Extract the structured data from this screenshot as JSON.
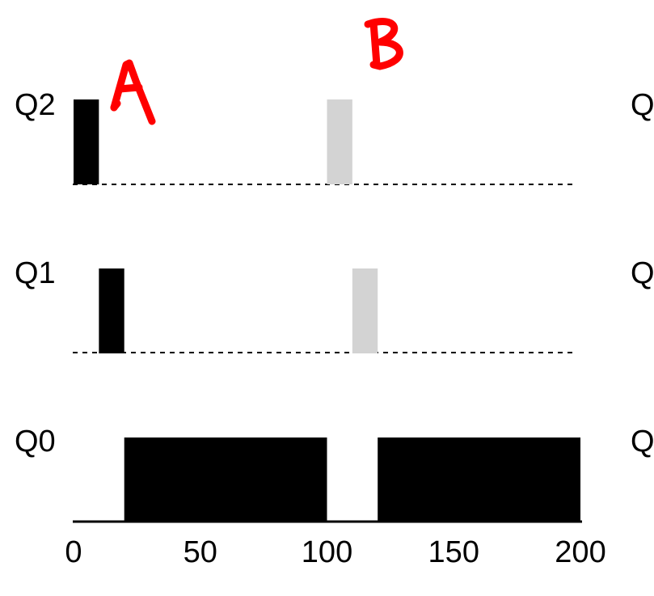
{
  "chart_data": {
    "type": "bar",
    "title": "",
    "xlabel": "",
    "ylabel": "",
    "x_ticks": [
      "0",
      "50",
      "100",
      "150",
      "200"
    ],
    "xlim": [
      0,
      200
    ],
    "queues": [
      "Q2",
      "Q1",
      "Q0"
    ],
    "right_labels": [
      "Q",
      "Q",
      "Q"
    ],
    "grid": false,
    "annotations": [
      "A",
      "B"
    ],
    "jobs": [
      {
        "name": "A",
        "color": "#000000",
        "segments": [
          {
            "queue": "Q2",
            "start": 0,
            "end": 10
          },
          {
            "queue": "Q1",
            "start": 10,
            "end": 20
          },
          {
            "queue": "Q0",
            "start": 20,
            "end": 100
          },
          {
            "queue": "Q0",
            "start": 120,
            "end": 200
          }
        ]
      },
      {
        "name": "B",
        "color": "#d3d3d3",
        "segments": [
          {
            "queue": "Q2",
            "start": 100,
            "end": 110
          },
          {
            "queue": "Q1",
            "start": 110,
            "end": 120
          }
        ]
      }
    ]
  },
  "colors": {
    "job_a": "#000000",
    "job_b": "#d3d3d3",
    "annotation": "#ff0000"
  }
}
